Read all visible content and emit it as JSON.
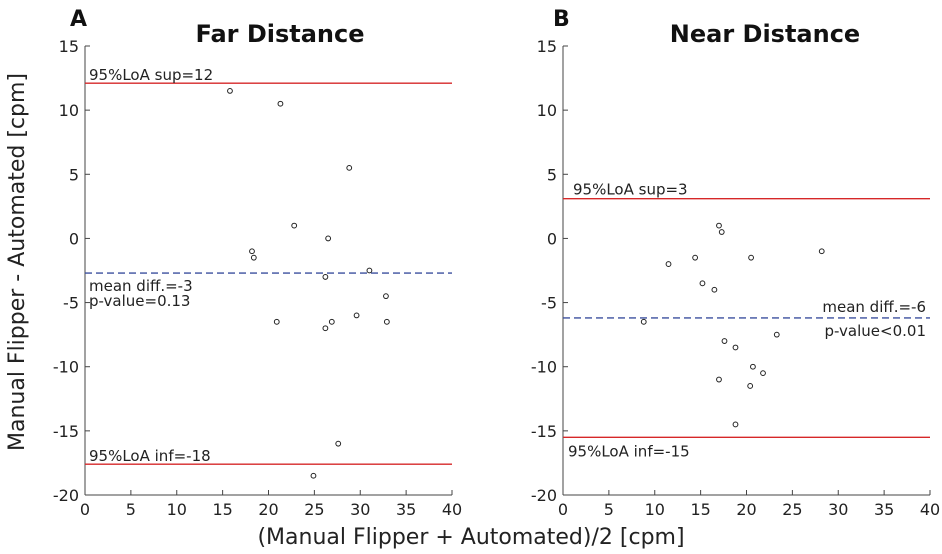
{
  "figure": {
    "ylabel": "Manual Flipper - Automated [cpm]",
    "xlabel": "(Manual Flipper + Automated)/2 [cpm]"
  },
  "chart_data": [
    {
      "type": "scatter",
      "panel_letter": "A",
      "title": "Far Distance",
      "xlim": [
        0,
        40
      ],
      "ylim": [
        -20,
        15
      ],
      "xticks": [
        0,
        5,
        10,
        15,
        20,
        25,
        30,
        35,
        40
      ],
      "yticks": [
        15,
        10,
        5,
        0,
        -5,
        -10,
        -15,
        -20
      ],
      "points": [
        {
          "x": 15.8,
          "y": 11.5
        },
        {
          "x": 21.3,
          "y": 10.5
        },
        {
          "x": 28.8,
          "y": 5.5
        },
        {
          "x": 22.8,
          "y": 1.0
        },
        {
          "x": 26.5,
          "y": 0.0
        },
        {
          "x": 18.2,
          "y": -1.0
        },
        {
          "x": 18.4,
          "y": -1.5
        },
        {
          "x": 31.0,
          "y": -2.5
        },
        {
          "x": 26.2,
          "y": -3.0
        },
        {
          "x": 32.8,
          "y": -4.5
        },
        {
          "x": 29.6,
          "y": -6.0
        },
        {
          "x": 20.9,
          "y": -6.5
        },
        {
          "x": 26.9,
          "y": -6.5
        },
        {
          "x": 32.9,
          "y": -6.5
        },
        {
          "x": 26.2,
          "y": -7.0
        },
        {
          "x": 27.6,
          "y": -16.0
        },
        {
          "x": 24.9,
          "y": -18.5
        }
      ],
      "mean": -2.7,
      "loa_sup": 12.1,
      "loa_inf": -17.6,
      "labels": {
        "loa_sup": "95%LoA sup=12",
        "loa_inf": "95%LoA inf=-18",
        "mean": "mean diff.=-3",
        "pvalue": "p-value=0.13"
      },
      "colors": {
        "loa": "#d62728",
        "mean": "#3a4f9e",
        "points": "#222222"
      }
    },
    {
      "type": "scatter",
      "panel_letter": "B",
      "title": "Near Distance",
      "xlim": [
        0,
        40
      ],
      "ylim": [
        -20,
        15
      ],
      "xticks": [
        0,
        5,
        10,
        15,
        20,
        25,
        30,
        35,
        40
      ],
      "yticks": [
        15,
        10,
        5,
        0,
        -5,
        -10,
        -15,
        -20
      ],
      "points": [
        {
          "x": 17.0,
          "y": 1.0
        },
        {
          "x": 17.3,
          "y": 0.5
        },
        {
          "x": 28.2,
          "y": -1.0
        },
        {
          "x": 14.4,
          "y": -1.5
        },
        {
          "x": 20.5,
          "y": -1.5
        },
        {
          "x": 11.5,
          "y": -2.0
        },
        {
          "x": 15.2,
          "y": -3.5
        },
        {
          "x": 16.5,
          "y": -4.0
        },
        {
          "x": 8.8,
          "y": -6.5
        },
        {
          "x": 23.3,
          "y": -7.5
        },
        {
          "x": 17.6,
          "y": -8.0
        },
        {
          "x": 18.8,
          "y": -8.5
        },
        {
          "x": 20.7,
          "y": -10.0
        },
        {
          "x": 21.8,
          "y": -10.5
        },
        {
          "x": 17.0,
          "y": -11.0
        },
        {
          "x": 20.4,
          "y": -11.5
        },
        {
          "x": 18.8,
          "y": -14.5
        }
      ],
      "mean": -6.2,
      "loa_sup": 3.1,
      "loa_inf": -15.5,
      "labels": {
        "loa_sup": "95%LoA sup=3",
        "loa_inf": "95%LoA inf=-15",
        "mean": "mean diff.=-6",
        "pvalue": "p-value<0.01"
      },
      "colors": {
        "loa": "#d62728",
        "mean": "#3a4f9e",
        "points": "#222222"
      }
    }
  ]
}
